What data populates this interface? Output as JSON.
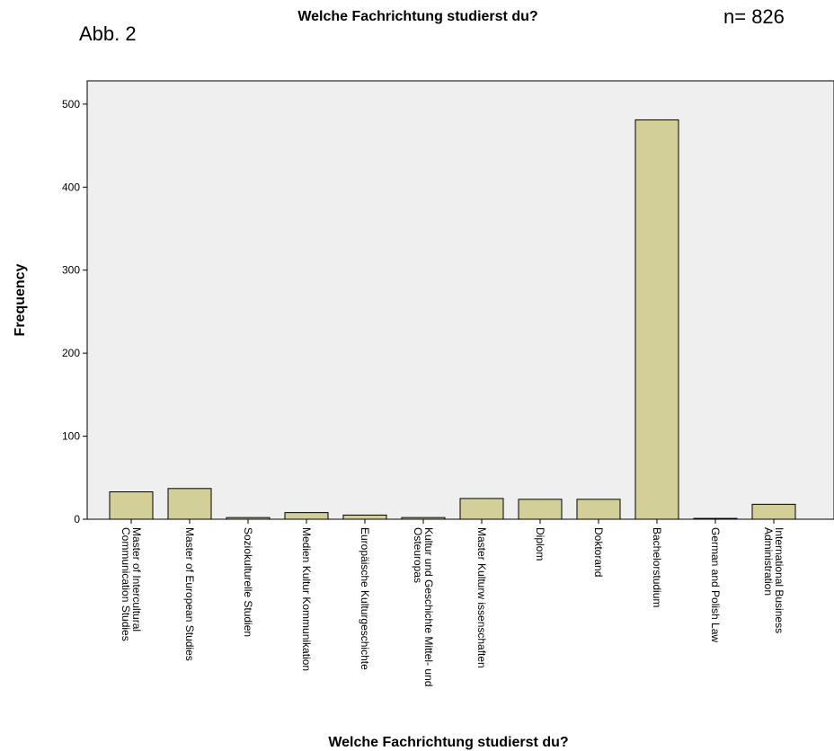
{
  "chart_data": {
    "type": "bar",
    "title": "Welche Fachrichtung studierst du?",
    "annotations": [
      "Abb. 2",
      "n= 826"
    ],
    "xlabel": "Welche Fachrichtung studierst du?",
    "ylabel": "Frequency",
    "categories": [
      "Master of Intercultural\nCommunication Studies",
      "Master of European Studies",
      "Soziokulturelle Studien",
      "Medien Kultur Kommunikation",
      "Europäische Kulturgeschichte",
      "Kultur und Geschichte Mittel- und\nOsteuropas",
      "Master Kulturw issenschaften",
      "Diplom",
      "Doktorand",
      "Bachelorstudium",
      "German and Polish Law",
      "International Business\nAdministration"
    ],
    "values": [
      33,
      37,
      2,
      8,
      5,
      2,
      25,
      24,
      24,
      481,
      1,
      18
    ],
    "color": "#d3cf98",
    "ylim": [
      0,
      528
    ],
    "yticks": [
      0,
      100,
      200,
      300,
      400,
      500
    ],
    "grid": false
  }
}
